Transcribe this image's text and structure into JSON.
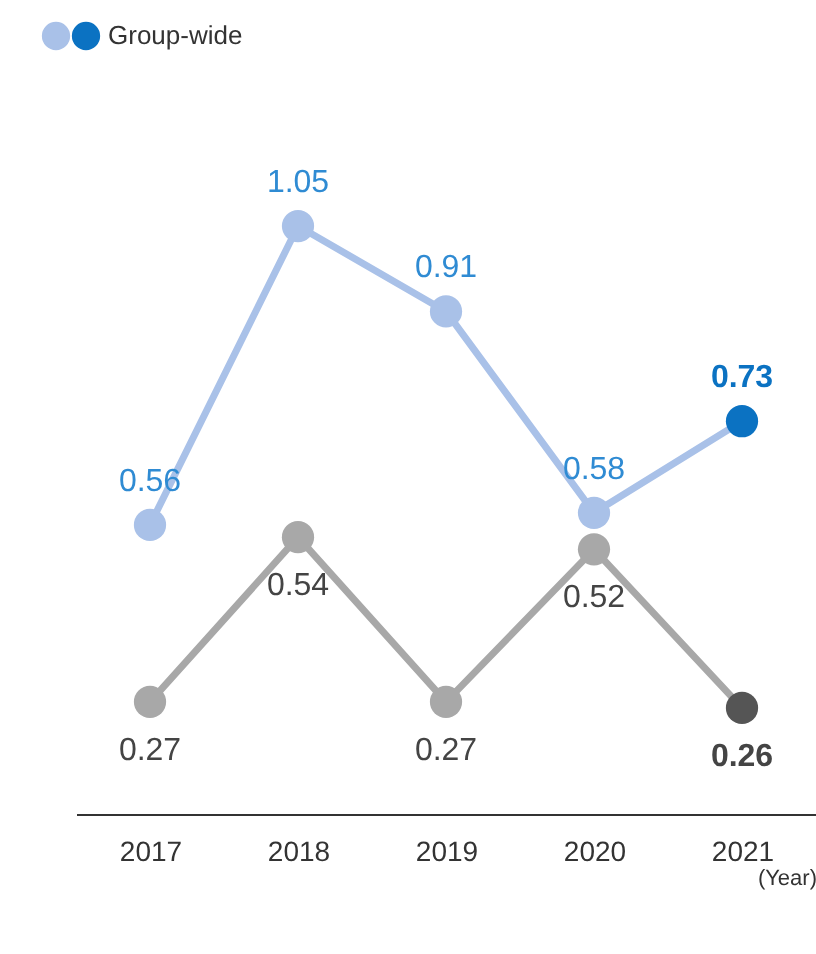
{
  "chart_data": {
    "type": "line",
    "categories": [
      "2017",
      "2018",
      "2019",
      "2020",
      "2021"
    ],
    "xlabel": "(Year)",
    "series": [
      {
        "name": "Group-wide",
        "color": "#a9c1e8",
        "colors": [
          "#a9c1e8",
          "#a9c1e8",
          "#a9c1e8",
          "#a9c1e8",
          "#0b72c2"
        ],
        "values": [
          0.56,
          1.05,
          0.91,
          0.58,
          0.73
        ]
      },
      {
        "color": "#a8a8a8",
        "colors": [
          "#a8a8a8",
          "#a8a8a8",
          "#a8a8a8",
          "#a8a8a8",
          "#555555"
        ],
        "values": [
          0.27,
          0.54,
          0.27,
          0.52,
          0.26
        ]
      }
    ],
    "data_labels": true,
    "marker": "circle",
    "legend": "top left"
  }
}
